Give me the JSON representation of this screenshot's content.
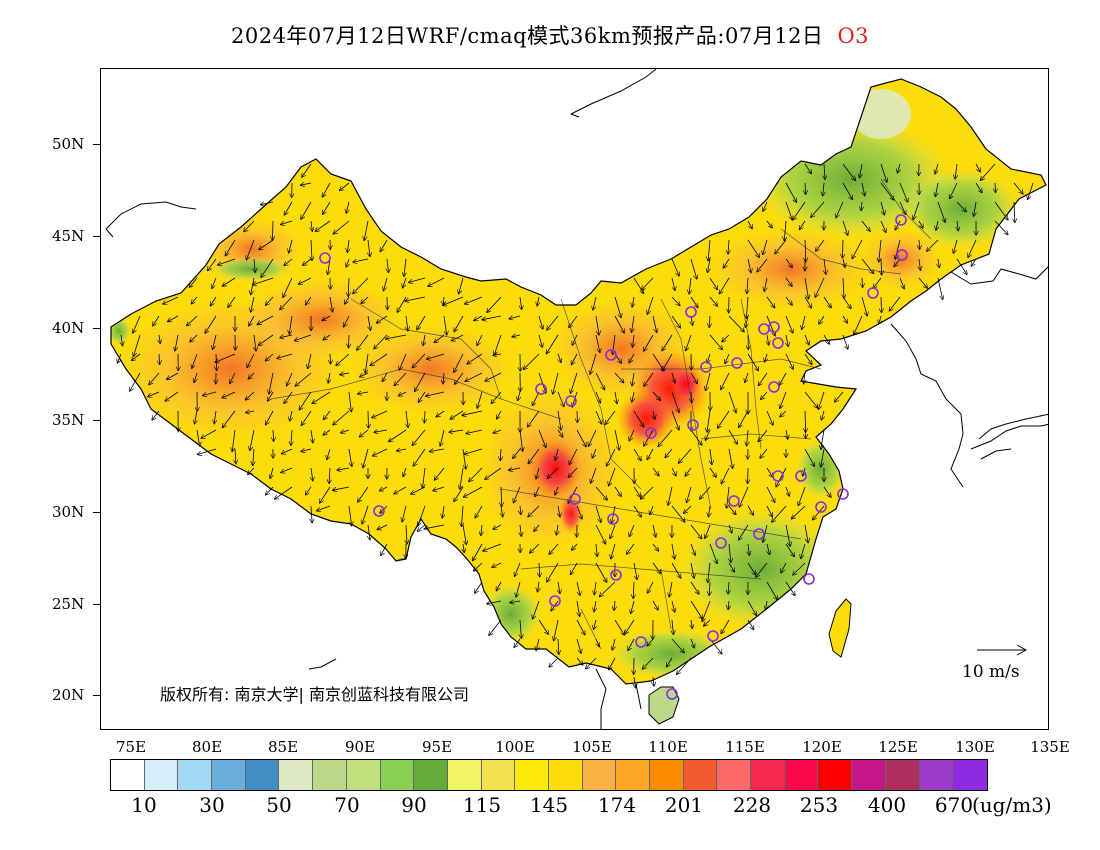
{
  "title": {
    "text": "2024年07月12日WRF/cmaq模式36km预报产品:07月12日",
    "variable": "O3"
  },
  "axes": {
    "lat_labels": [
      "50N",
      "45N",
      "40N",
      "35N",
      "30N",
      "25N",
      "20N"
    ],
    "lon_labels": [
      "75E",
      "80E",
      "85E",
      "90E",
      "95E",
      "100E",
      "105E",
      "110E",
      "115E",
      "120E",
      "125E",
      "130E",
      "135E"
    ]
  },
  "copyright": "版权所有: 南京大学| 南京创蓝科技有限公司",
  "wind_key": {
    "label": "10 m/s"
  },
  "legend": {
    "labels": [
      "10",
      "30",
      "50",
      "70",
      "90",
      "115",
      "145",
      "174",
      "201",
      "228",
      "253",
      "400",
      "670"
    ],
    "unit": "(ug/m3)",
    "colors": [
      "#ffffff",
      "#d5eefa",
      "#a3d9f4",
      "#6aaede",
      "#428dc2",
      "#dde9c0",
      "#bcd88a",
      "#bfe07d",
      "#8ccf55",
      "#66aa3a",
      "#f1f464",
      "#f2e250",
      "#fbea0a",
      "#fcdc0b",
      "#f9b243",
      "#fba826",
      "#fb8c00",
      "#f05a2c",
      "#fb6a6a",
      "#f62850",
      "#f7094a",
      "#fc0000",
      "#c41686",
      "#ae2f5f",
      "#9e3bc8",
      "#8f2ae2"
    ]
  },
  "stations": 38
}
